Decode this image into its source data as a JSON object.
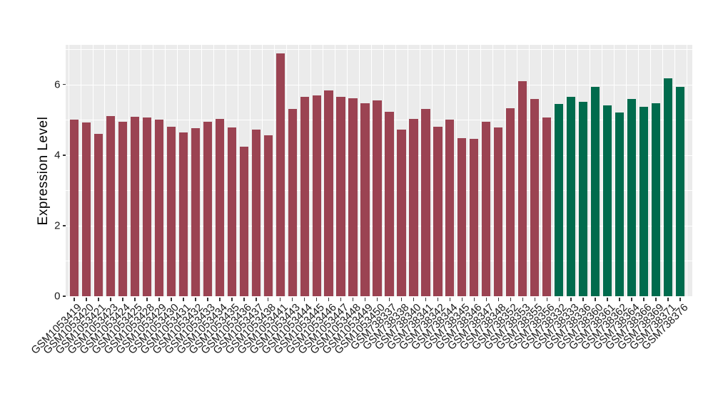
{
  "chart_data": {
    "type": "bar",
    "title": "",
    "xlabel": "",
    "ylabel": "Expression Level",
    "ylim": [
      0,
      7.12
    ],
    "y_major_ticks": [
      0,
      2,
      4,
      6
    ],
    "y_minor_ticks": [
      1,
      3,
      5,
      7
    ],
    "grid": "on",
    "legend": "none",
    "panel_bg": "#EBEBEB",
    "grid_color": "#FFFFFF",
    "group_colors": {
      "group_red": "#9B4352",
      "group_green": "#006B4D"
    },
    "bars": [
      {
        "label": "GSM1053419",
        "value": 5.0,
        "group": "group_red"
      },
      {
        "label": "GSM1053420",
        "value": 4.93,
        "group": "group_red"
      },
      {
        "label": "GSM1053421",
        "value": 4.61,
        "group": "group_red"
      },
      {
        "label": "GSM1053423",
        "value": 5.1,
        "group": "group_red"
      },
      {
        "label": "GSM1053424",
        "value": 4.95,
        "group": "group_red"
      },
      {
        "label": "GSM1053425",
        "value": 5.09,
        "group": "group_red"
      },
      {
        "label": "GSM1053428",
        "value": 5.06,
        "group": "group_red"
      },
      {
        "label": "GSM1053429",
        "value": 5.01,
        "group": "group_red"
      },
      {
        "label": "GSM1053430",
        "value": 4.8,
        "group": "group_red"
      },
      {
        "label": "GSM1053431",
        "value": 4.65,
        "group": "group_red"
      },
      {
        "label": "GSM1053432",
        "value": 4.76,
        "group": "group_red"
      },
      {
        "label": "GSM1053433",
        "value": 4.95,
        "group": "group_red"
      },
      {
        "label": "GSM1053434",
        "value": 5.03,
        "group": "group_red"
      },
      {
        "label": "GSM1053435",
        "value": 4.78,
        "group": "group_red"
      },
      {
        "label": "GSM1053436",
        "value": 4.23,
        "group": "group_red"
      },
      {
        "label": "GSM1053437",
        "value": 4.72,
        "group": "group_red"
      },
      {
        "label": "GSM1053438",
        "value": 4.56,
        "group": "group_red"
      },
      {
        "label": "GSM1053441",
        "value": 6.88,
        "group": "group_red"
      },
      {
        "label": "GSM1053443",
        "value": 5.31,
        "group": "group_red"
      },
      {
        "label": "GSM1053444",
        "value": 5.64,
        "group": "group_red"
      },
      {
        "label": "GSM1053445",
        "value": 5.7,
        "group": "group_red"
      },
      {
        "label": "GSM1053446",
        "value": 5.84,
        "group": "group_red"
      },
      {
        "label": "GSM1053447",
        "value": 5.64,
        "group": "group_red"
      },
      {
        "label": "GSM1053448",
        "value": 5.61,
        "group": "group_red"
      },
      {
        "label": "GSM1053449",
        "value": 5.46,
        "group": "group_red"
      },
      {
        "label": "GSM1053450",
        "value": 5.54,
        "group": "group_red"
      },
      {
        "label": "GSM738337",
        "value": 5.22,
        "group": "group_red"
      },
      {
        "label": "GSM738338",
        "value": 4.73,
        "group": "group_red"
      },
      {
        "label": "GSM738340",
        "value": 5.02,
        "group": "group_red"
      },
      {
        "label": "GSM738341",
        "value": 5.3,
        "group": "group_red"
      },
      {
        "label": "GSM738342",
        "value": 4.8,
        "group": "group_red"
      },
      {
        "label": "GSM738344",
        "value": 5.01,
        "group": "group_red"
      },
      {
        "label": "GSM738345",
        "value": 4.48,
        "group": "group_red"
      },
      {
        "label": "GSM738346",
        "value": 4.46,
        "group": "group_red"
      },
      {
        "label": "GSM738347",
        "value": 4.95,
        "group": "group_red"
      },
      {
        "label": "GSM738348",
        "value": 4.78,
        "group": "group_red"
      },
      {
        "label": "GSM738352",
        "value": 5.32,
        "group": "group_red"
      },
      {
        "label": "GSM738353",
        "value": 6.1,
        "group": "group_red"
      },
      {
        "label": "GSM738355",
        "value": 5.58,
        "group": "group_red"
      },
      {
        "label": "GSM738356",
        "value": 5.07,
        "group": "group_red"
      },
      {
        "label": "GSM738332",
        "value": 5.44,
        "group": "group_green"
      },
      {
        "label": "GSM738333",
        "value": 5.64,
        "group": "group_green"
      },
      {
        "label": "GSM738336",
        "value": 5.5,
        "group": "group_green"
      },
      {
        "label": "GSM738360",
        "value": 5.94,
        "group": "group_green"
      },
      {
        "label": "GSM738361",
        "value": 5.4,
        "group": "group_green"
      },
      {
        "label": "GSM738362",
        "value": 5.2,
        "group": "group_green"
      },
      {
        "label": "GSM738364",
        "value": 5.59,
        "group": "group_green"
      },
      {
        "label": "GSM738366",
        "value": 5.36,
        "group": "group_green"
      },
      {
        "label": "GSM738369",
        "value": 5.46,
        "group": "group_green"
      },
      {
        "label": "GSM738371",
        "value": 6.17,
        "group": "group_green"
      },
      {
        "label": "GSM738376",
        "value": 5.94,
        "group": "group_green"
      }
    ]
  }
}
